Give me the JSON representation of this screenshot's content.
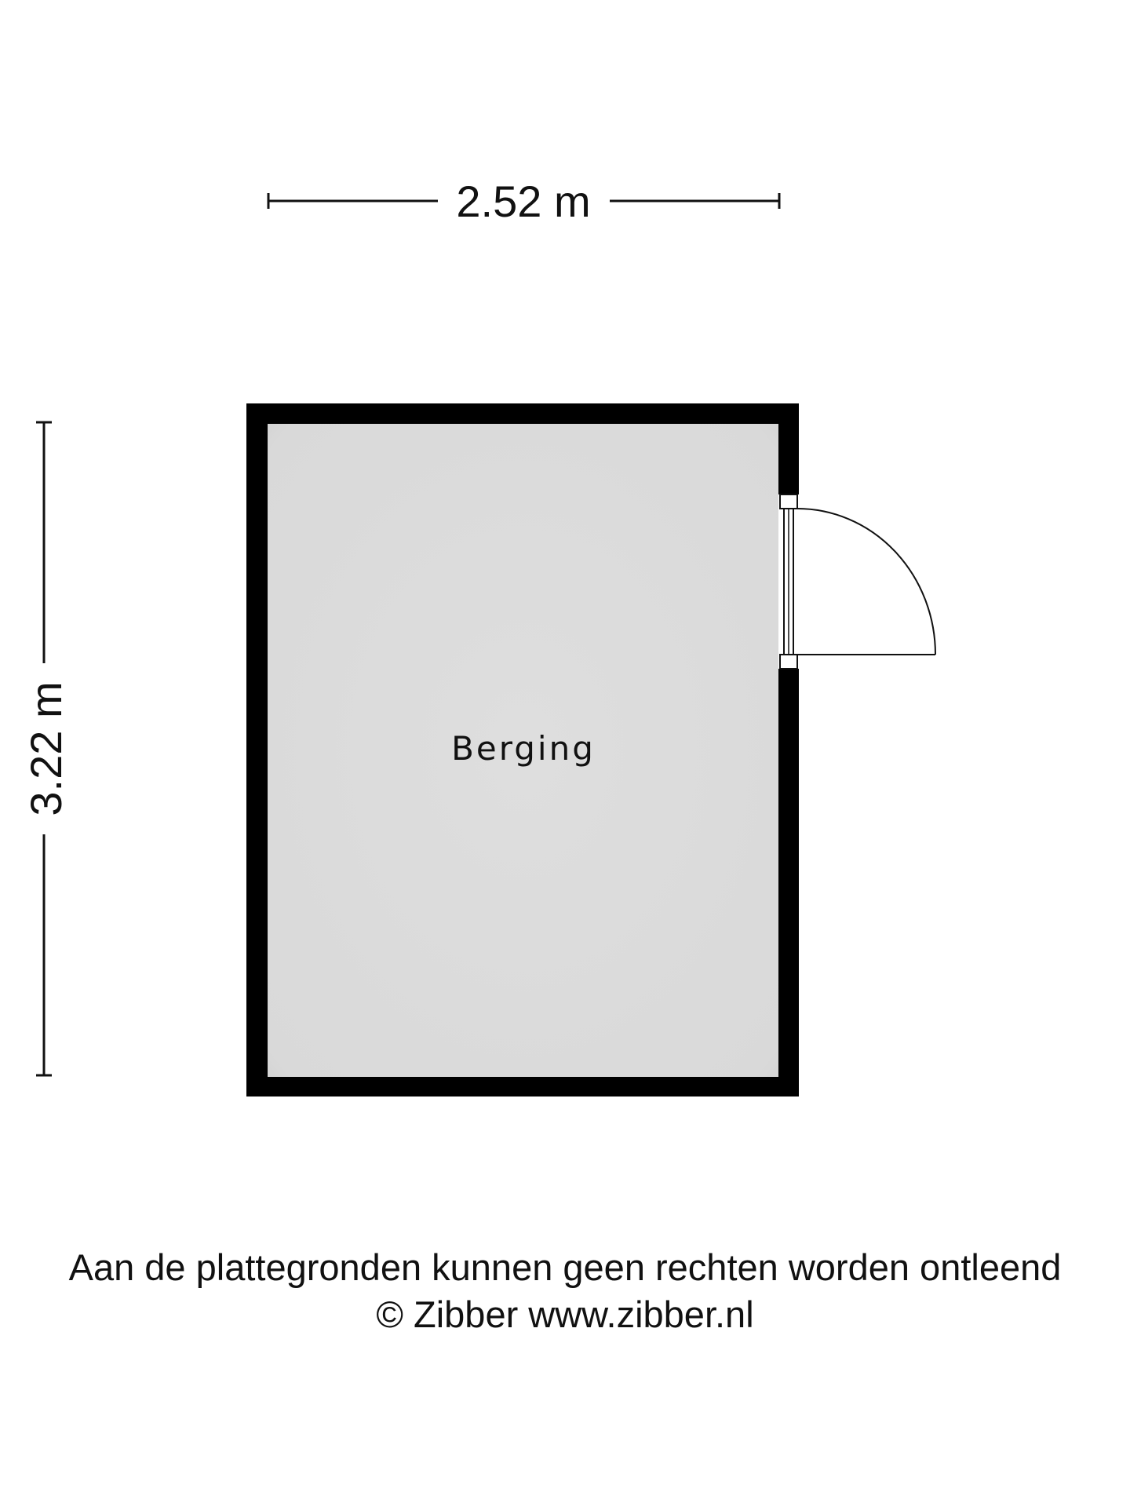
{
  "dimensions": {
    "width_label": "2.52 m",
    "height_label": "3.22 m"
  },
  "room": {
    "name": "Berging",
    "floor_color": "#dcdcdc",
    "wall_color": "#000000"
  },
  "footer": {
    "disclaimer": "Aan de plattegronden kunnen geen rechten worden ontleend",
    "copyright": "© Zibber www.zibber.nl"
  }
}
